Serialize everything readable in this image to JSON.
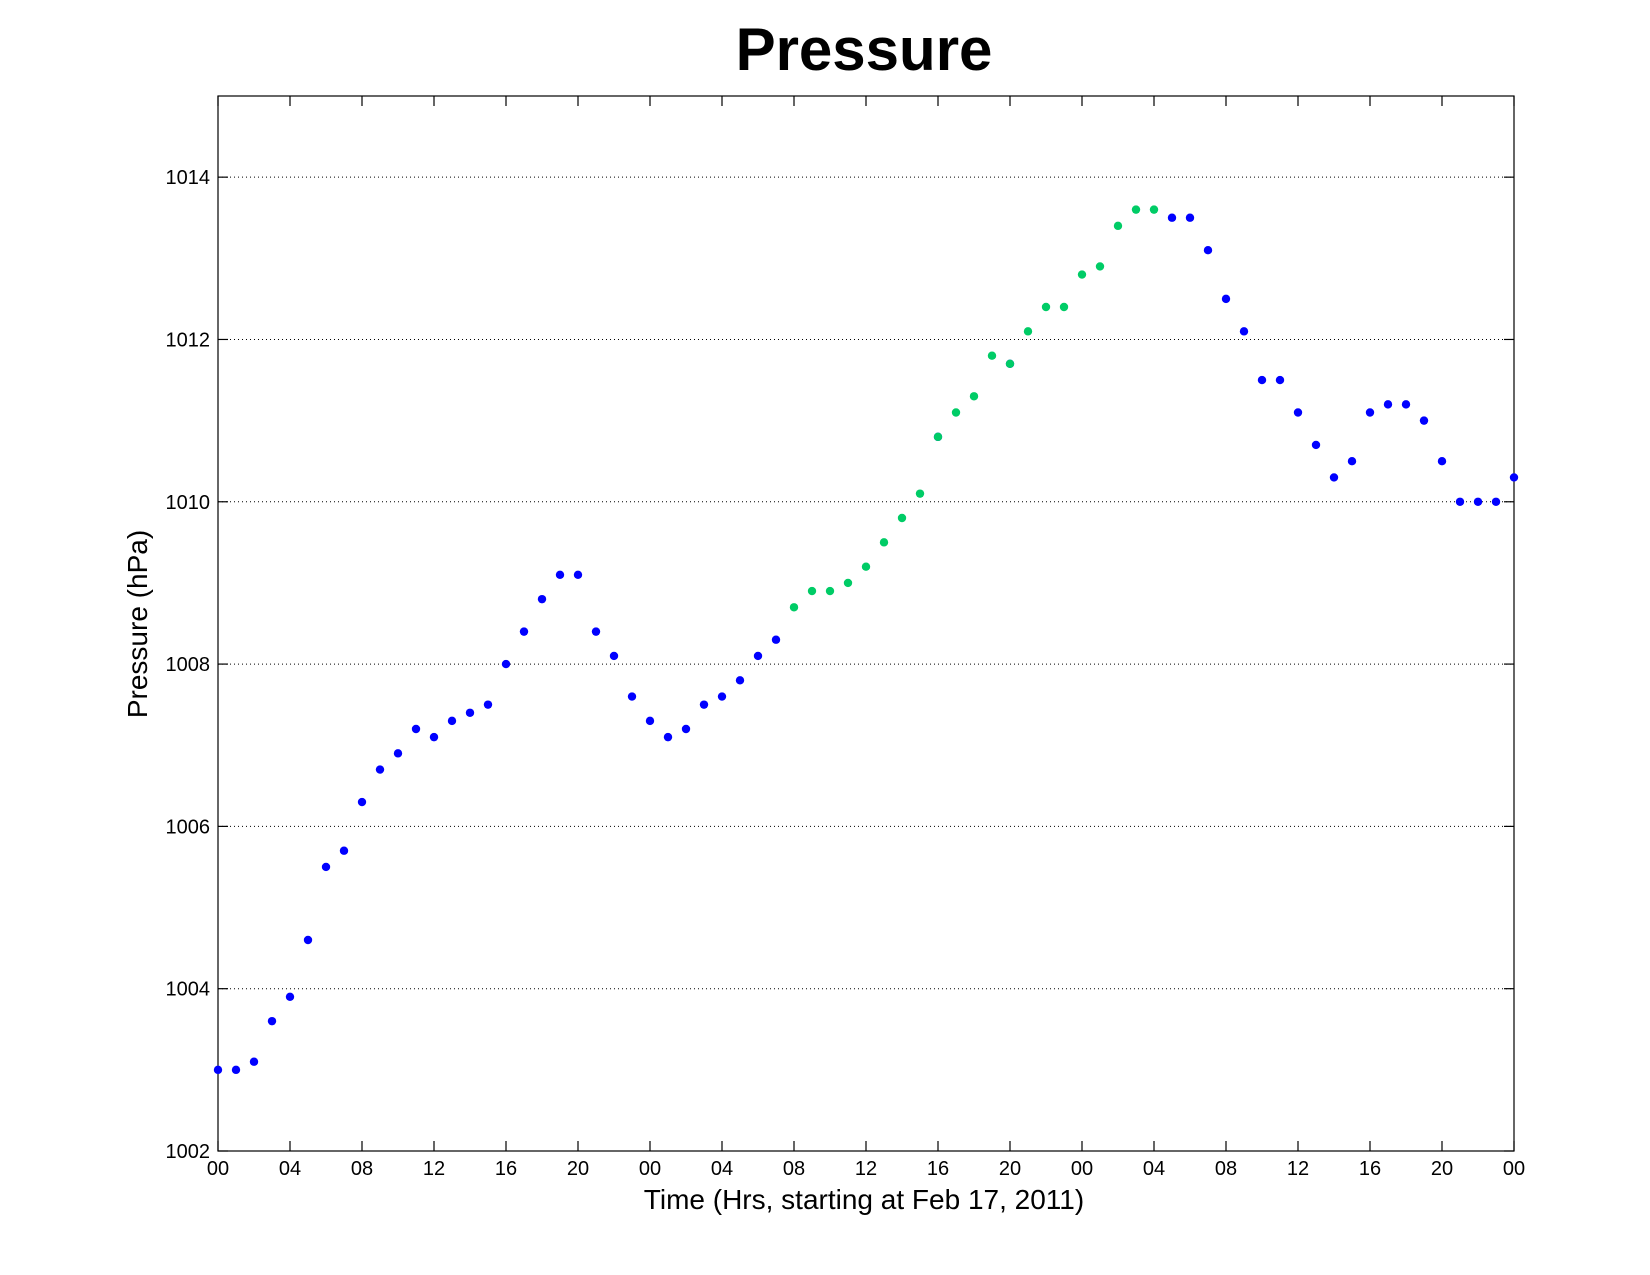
{
  "chart_data": {
    "type": "scatter",
    "title": "Pressure",
    "xlabel": "Time (Hrs, starting at Feb 17, 2011)",
    "ylabel": "Pressure (hPa)",
    "xlim": [
      0,
      72
    ],
    "ylim": [
      1002,
      1015
    ],
    "x_ticks": [
      {
        "x": 0,
        "label": "00"
      },
      {
        "x": 4,
        "label": "04"
      },
      {
        "x": 8,
        "label": "08"
      },
      {
        "x": 12,
        "label": "12"
      },
      {
        "x": 16,
        "label": "16"
      },
      {
        "x": 20,
        "label": "20"
      },
      {
        "x": 24,
        "label": "00"
      },
      {
        "x": 28,
        "label": "04"
      },
      {
        "x": 32,
        "label": "08"
      },
      {
        "x": 36,
        "label": "12"
      },
      {
        "x": 40,
        "label": "16"
      },
      {
        "x": 44,
        "label": "20"
      },
      {
        "x": 48,
        "label": "00"
      },
      {
        "x": 52,
        "label": "04"
      },
      {
        "x": 56,
        "label": "08"
      },
      {
        "x": 60,
        "label": "12"
      },
      {
        "x": 64,
        "label": "16"
      },
      {
        "x": 68,
        "label": "20"
      },
      {
        "x": 72,
        "label": "00"
      }
    ],
    "y_ticks": [
      {
        "y": 1002,
        "label": "1002"
      },
      {
        "y": 1004,
        "label": "1004"
      },
      {
        "y": 1006,
        "label": "1006"
      },
      {
        "y": 1008,
        "label": "1008"
      },
      {
        "y": 1010,
        "label": "1010"
      },
      {
        "y": 1012,
        "label": "1012"
      },
      {
        "y": 1014,
        "label": "1014"
      }
    ],
    "grid": "y-dotted",
    "series": [
      {
        "color": "#0000ff",
        "x": [
          0,
          1,
          2,
          3,
          4,
          5,
          6,
          7,
          8,
          9,
          10,
          11,
          12,
          13,
          14,
          15,
          16,
          17,
          18,
          19,
          20,
          21,
          22,
          23,
          24,
          25,
          26,
          27,
          28,
          29,
          30,
          31,
          40,
          44,
          53,
          54,
          55,
          56,
          57,
          58,
          59,
          60,
          61,
          62,
          63,
          64,
          65,
          66,
          67,
          68,
          69,
          70,
          71,
          72
        ],
        "y": [
          1003.0,
          1003.0,
          1003.1,
          1003.6,
          1003.9,
          1004.6,
          1005.5,
          1005.7,
          1006.3,
          1006.7,
          1006.9,
          1007.2,
          1007.1,
          1007.3,
          1007.4,
          1007.5,
          1008.0,
          1008.4,
          1008.8,
          1009.1,
          1009.1,
          1008.4,
          1008.1,
          1007.6,
          1007.3,
          1007.1,
          1007.2,
          1007.5,
          1007.6,
          1007.8,
          1008.1,
          1008.3,
          1010.8,
          1011.7,
          1013.5,
          1013.5,
          1013.1,
          1012.5,
          1012.1,
          1011.5,
          1011.5,
          1011.1,
          1010.7,
          1010.3,
          1010.5,
          1011.1,
          1011.2,
          1011.2,
          1011.0,
          1010.5,
          1010.0,
          1010.0,
          1010.0,
          1010.3
        ]
      },
      {
        "color": "#00cc66",
        "x": [
          32,
          33,
          34,
          35,
          36,
          37,
          38,
          39,
          40,
          41,
          42,
          43,
          44,
          45,
          46,
          47,
          48,
          49,
          50,
          51,
          52
        ],
        "y": [
          1008.7,
          1008.9,
          1008.9,
          1009.0,
          1009.2,
          1009.5,
          1009.8,
          1010.1,
          1010.8,
          1011.1,
          1011.3,
          1011.8,
          1011.7,
          1012.1,
          1012.4,
          1012.4,
          1012.8,
          1012.9,
          1013.4,
          1013.6,
          1013.6
        ]
      }
    ]
  }
}
